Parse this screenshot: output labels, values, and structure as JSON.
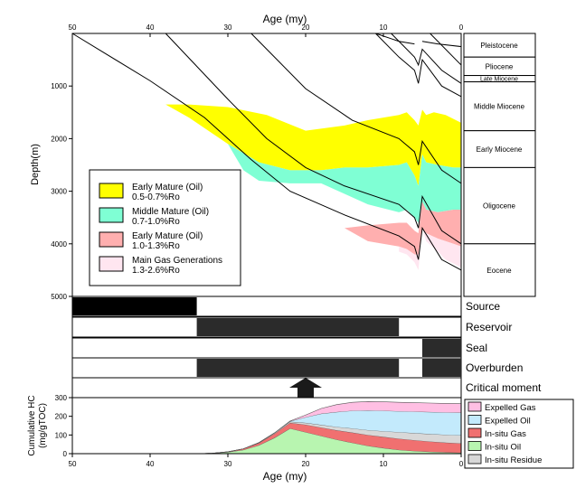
{
  "colors": {
    "early_mature": "#ffff00",
    "middle_mature": "#7fffd4",
    "late_mature": "#ffafaf",
    "gas_gen": "#ffe6f0",
    "event_bar": "#2b2b2b",
    "source_bar": "#000000",
    "expelled_gas": "#ffbfe3",
    "expelled_oil": "#c3eafc",
    "insitu_gas": "#f07070",
    "insitu_oil": "#b8f5b0",
    "insitu_residue": "#d8d8d8"
  },
  "chart_data": [
    {
      "type": "area",
      "name": "burial-history",
      "x_axis_top_label": "Age (my)",
      "ylabel": "Depth(m)",
      "xlim": [
        50,
        0
      ],
      "ylim": [
        0,
        5000
      ],
      "xticks": [
        50,
        40,
        30,
        20,
        10,
        0
      ],
      "yticks": [
        1000,
        2000,
        3000,
        4000,
        5000
      ],
      "stratigraphy": [
        {
          "label": "Pleistocene",
          "top": 0,
          "base": 450
        },
        {
          "label": "Pliocene",
          "top": 450,
          "base": 800
        },
        {
          "label": "Late Miocene",
          "top": 800,
          "base": 920
        },
        {
          "label": "Middle Miocene",
          "top": 920,
          "base": 1850
        },
        {
          "label": "Early Miocene",
          "top": 1850,
          "base": 2550
        },
        {
          "label": "Oligocene",
          "top": 2550,
          "base": 4000
        },
        {
          "label": "Eocene",
          "top": 4000,
          "base": 5000
        }
      ],
      "legend": [
        {
          "name": "Early Mature (Oil)",
          "range": "0.5-0.7%Ro",
          "color_key": "early_mature"
        },
        {
          "name": "Middle Mature (Oil)",
          "range": "0.7-1.0%Ro",
          "color_key": "middle_mature"
        },
        {
          "name": "Early Mature (Oil)",
          "range": "1.0-1.3%Ro",
          "color_key": "late_mature"
        },
        {
          "name": "Main Gas Generations",
          "range": "1.3-2.6%Ro",
          "color_key": "gas_gen"
        }
      ],
      "horizons": [
        [
          [
            50,
            0
          ],
          [
            40,
            900
          ],
          [
            33,
            1600
          ],
          [
            27,
            2400
          ],
          [
            22,
            3000
          ],
          [
            15,
            3450
          ],
          [
            8,
            3850
          ],
          [
            6,
            4050
          ],
          [
            5.5,
            4300
          ],
          [
            5,
            3700
          ],
          [
            2.5,
            4300
          ],
          [
            0,
            4500
          ]
        ],
        [
          [
            38,
            0
          ],
          [
            30,
            1250
          ],
          [
            25,
            2000
          ],
          [
            20,
            2550
          ],
          [
            15,
            2900
          ],
          [
            8,
            3250
          ],
          [
            6,
            3500
          ],
          [
            5.5,
            3700
          ],
          [
            5,
            3100
          ],
          [
            2.5,
            3750
          ],
          [
            0,
            4000
          ]
        ],
        [
          [
            27,
            0
          ],
          [
            20,
            1050
          ],
          [
            14,
            1650
          ],
          [
            8,
            2000
          ],
          [
            6,
            2250
          ],
          [
            5.5,
            2500
          ],
          [
            5,
            2050
          ],
          [
            2.5,
            2600
          ],
          [
            0,
            2850
          ]
        ],
        [
          [
            11,
            0
          ],
          [
            8,
            450
          ],
          [
            6,
            700
          ],
          [
            5.5,
            950
          ],
          [
            5,
            500
          ],
          [
            2.5,
            1000
          ],
          [
            0,
            1200
          ]
        ],
        [
          [
            9,
            0
          ],
          [
            6,
            450
          ],
          [
            5.5,
            600
          ],
          [
            5,
            300
          ],
          [
            2.5,
            700
          ],
          [
            0,
            950
          ]
        ],
        [
          [
            11,
            0
          ],
          [
            9,
            100
          ],
          [
            8,
            150
          ],
          [
            6,
            200
          ]
        ],
        [
          [
            5,
            150
          ],
          [
            3,
            200
          ],
          [
            0,
            250
          ]
        ],
        [
          [
            4,
            0
          ],
          [
            0,
            600
          ]
        ]
      ],
      "zones": [
        {
          "color_key": "early_mature",
          "top": [
            [
              38,
              1350
            ],
            [
              35,
              1350
            ],
            [
              30,
              1400
            ],
            [
              25,
              1550
            ],
            [
              20,
              1850
            ],
            [
              15,
              1750
            ],
            [
              12,
              1650
            ],
            [
              8,
              1550
            ],
            [
              7,
              1500
            ],
            [
              6,
              1650
            ],
            [
              5.5,
              1750
            ],
            [
              5,
              1450
            ],
            [
              4.5,
              1550
            ],
            [
              3.5,
              1500
            ],
            [
              2,
              1550
            ],
            [
              0,
              1700
            ]
          ],
          "bottom": [
            [
              38,
              1350
            ],
            [
              35,
              1600
            ],
            [
              30,
              2100
            ],
            [
              26,
              2450
            ],
            [
              22,
              2600
            ],
            [
              18,
              2600
            ],
            [
              15,
              2550
            ],
            [
              12,
              2550
            ],
            [
              8,
              2500
            ],
            [
              7,
              2450
            ],
            [
              6,
              2700
            ],
            [
              5.5,
              2900
            ],
            [
              5,
              2300
            ],
            [
              4.5,
              2450
            ],
            [
              3,
              2500
            ],
            [
              1,
              2550
            ],
            [
              0,
              2550
            ]
          ]
        },
        {
          "color_key": "middle_mature",
          "top": [
            [
              35,
              1600
            ],
            [
              30,
              2100
            ],
            [
              26,
              2450
            ],
            [
              22,
              2600
            ],
            [
              18,
              2600
            ],
            [
              15,
              2550
            ],
            [
              12,
              2550
            ],
            [
              8,
              2500
            ],
            [
              7,
              2450
            ],
            [
              6,
              2700
            ],
            [
              5.5,
              2900
            ],
            [
              5,
              2300
            ],
            [
              4.5,
              2450
            ],
            [
              3,
              2500
            ],
            [
              1,
              2550
            ],
            [
              0,
              2550
            ]
          ],
          "bottom": [
            [
              30,
              2100
            ],
            [
              28,
              2600
            ],
            [
              26,
              2800
            ],
            [
              22,
              2850
            ],
            [
              18,
              2850
            ],
            [
              15,
              3050
            ],
            [
              12,
              3250
            ],
            [
              8,
              3400
            ],
            [
              7,
              3350
            ],
            [
              6,
              3500
            ],
            [
              5.5,
              3600
            ],
            [
              5,
              3200
            ],
            [
              4.5,
              3350
            ],
            [
              3,
              3400
            ],
            [
              1,
              3350
            ],
            [
              0,
              3350
            ]
          ]
        },
        {
          "color_key": "late_mature",
          "top": [
            [
              18,
              3600
            ],
            [
              15,
              3700
            ],
            [
              12,
              3650
            ],
            [
              8,
              3600
            ],
            [
              7,
              3600
            ],
            [
              6,
              3750
            ],
            [
              5.5,
              3800
            ],
            [
              5,
              3200
            ],
            [
              4.5,
              3350
            ],
            [
              3,
              3400
            ],
            [
              1,
              3350
            ],
            [
              0,
              3350
            ]
          ],
          "bottom": [
            [
              18,
              3600
            ],
            [
              15,
              3700
            ],
            [
              12,
              3950
            ],
            [
              8,
              4050
            ],
            [
              7,
              4100
            ],
            [
              6,
              4200
            ],
            [
              5.5,
              4200
            ],
            [
              5,
              3700
            ],
            [
              4.5,
              3800
            ],
            [
              3,
              3900
            ],
            [
              1,
              4000
            ],
            [
              0,
              4050
            ]
          ]
        },
        {
          "color_key": "gas_gen",
          "top": [
            [
              8,
              4050
            ],
            [
              7,
              4100
            ],
            [
              6,
              4200
            ],
            [
              5.5,
              4200
            ],
            [
              5,
              3700
            ],
            [
              4.5,
              3800
            ],
            [
              3,
              3900
            ],
            [
              1,
              4000
            ],
            [
              0,
              4050
            ]
          ],
          "bottom": [
            [
              8,
              4150
            ],
            [
              7,
              4200
            ],
            [
              6,
              4350
            ],
            [
              5.5,
              4500
            ],
            [
              5,
              3700
            ],
            [
              4.5,
              3950
            ],
            [
              3,
              4150
            ],
            [
              2,
              4300
            ],
            [
              0,
              4450
            ]
          ]
        }
      ]
    },
    {
      "type": "timeline",
      "name": "petroleum-system-events",
      "xlim": [
        50,
        0
      ],
      "rows": [
        {
          "label": "Source",
          "bars": [
            [
              50,
              34
            ]
          ],
          "color_key": "source_bar"
        },
        {
          "label": "Reservoir",
          "bars": [
            [
              34,
              8
            ]
          ],
          "color_key": "event_bar"
        },
        {
          "label": "Seal",
          "bars": [
            [
              5,
              0
            ]
          ],
          "color_key": "event_bar"
        },
        {
          "label": "Overburden",
          "bars": [
            [
              34,
              8
            ],
            [
              5,
              0
            ]
          ],
          "color_key": "event_bar"
        },
        {
          "label": "Critical moment",
          "marker_age": 20
        }
      ]
    },
    {
      "type": "area",
      "name": "cumulative-hc",
      "xlabel": "Age (my)",
      "ylabel_lines": [
        "Cumulative HC",
        "(mg/gTOC)"
      ],
      "xlim": [
        50,
        0
      ],
      "ylim": [
        0,
        300
      ],
      "xticks": [
        50,
        40,
        30,
        20,
        10,
        0
      ],
      "yticks": [
        0,
        100,
        200,
        300
      ],
      "x": [
        34,
        32,
        30,
        28,
        26,
        24,
        22,
        20,
        18,
        16,
        14,
        12,
        10,
        8,
        6,
        4,
        2,
        0
      ],
      "series": [
        {
          "name": "In-situ Oil",
          "color_key": "insitu_oil",
          "values": [
            0,
            2,
            8,
            20,
            45,
            85,
            135,
            115,
            95,
            75,
            58,
            42,
            30,
            20,
            14,
            10,
            7,
            5
          ]
        },
        {
          "name": "In-situ Gas",
          "color_key": "insitu_gas",
          "values": [
            0,
            0,
            2,
            6,
            12,
            22,
            30,
            40,
            45,
            50,
            55,
            58,
            60,
            60,
            58,
            55,
            52,
            50
          ]
        },
        {
          "name": "In-situ Residue",
          "color_key": "insitu_residue",
          "values": [
            0,
            0,
            0,
            0,
            2,
            4,
            6,
            10,
            14,
            18,
            22,
            26,
            30,
            35,
            38,
            40,
            42,
            43
          ]
        },
        {
          "name": "Expelled Oil",
          "color_key": "expelled_oil",
          "values": [
            0,
            0,
            0,
            0,
            0,
            0,
            3,
            30,
            60,
            80,
            95,
            105,
            110,
            112,
            115,
            118,
            120,
            122
          ]
        },
        {
          "name": "Expelled Gas",
          "color_key": "expelled_gas",
          "values": [
            0,
            0,
            0,
            0,
            0,
            0,
            1,
            12,
            28,
            40,
            45,
            48,
            48,
            48,
            48,
            48,
            48,
            48
          ]
        }
      ],
      "legend_order": [
        "Expelled Gas",
        "Expelled Oil",
        "In-situ Gas",
        "In-situ Oil",
        "In-situ Residue"
      ]
    }
  ]
}
